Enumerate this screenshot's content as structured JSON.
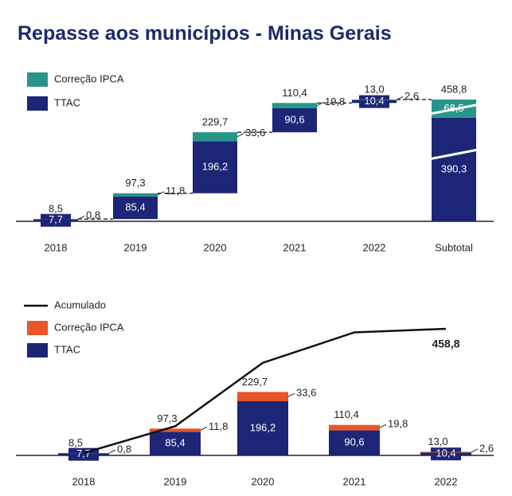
{
  "chart_data": [
    {
      "type": "waterfall",
      "title": "Repasse aos municípios - Minas Gerais",
      "categories": [
        "2018",
        "2019",
        "2020",
        "2021",
        "2022",
        "Subtotal"
      ],
      "measures": [
        "relative",
        "relative",
        "relative",
        "relative",
        "relative",
        "total"
      ],
      "series": [
        {
          "name": "TTAC",
          "color": "#1d2576",
          "values": [
            7.7,
            85.4,
            196.2,
            90.6,
            10.4,
            390.3
          ],
          "value_labels": [
            "7,7",
            "85,4",
            "196,2",
            "90,6",
            "10,4",
            "390,3"
          ]
        },
        {
          "name": "Correção IPCA",
          "color": "#27958a",
          "values": [
            0.8,
            11.8,
            33.6,
            19.8,
            2.6,
            68.5
          ],
          "value_labels": [
            "0,8",
            "11,8",
            "33,6",
            "19,8",
            "2,6",
            "68,5"
          ]
        }
      ],
      "totals": [
        8.5,
        97.3,
        229.7,
        110.4,
        13.0,
        458.8
      ],
      "totals_labels": [
        "8,5",
        "97,3",
        "229,7",
        "110,4",
        "13,0",
        "458,8"
      ]
    },
    {
      "type": "bar",
      "stacked": true,
      "categories": [
        "2018",
        "2019",
        "2020",
        "2021",
        "2022"
      ],
      "series": [
        {
          "name": "TTAC",
          "color": "#1d2576",
          "values": [
            7.7,
            85.4,
            196.2,
            90.6,
            10.4
          ],
          "value_labels": [
            "7,7",
            "85,4",
            "196,2",
            "90,6",
            "10,4"
          ]
        },
        {
          "name": "Correção IPCA",
          "color": "#e8552a",
          "values": [
            0.8,
            11.8,
            33.6,
            19.8,
            2.6
          ],
          "value_labels": [
            "0,8",
            "11,8",
            "33,6",
            "19,8",
            "2,6"
          ]
        },
        {
          "name": "Acumulado",
          "type": "line",
          "color": "#111111",
          "values": [
            8.5,
            105.8,
            335.5,
            445.9,
            458.8
          ],
          "value_labels": [
            null,
            null,
            null,
            null,
            "458,8"
          ]
        }
      ],
      "totals": [
        8.5,
        97.3,
        229.7,
        110.4,
        13.0
      ],
      "totals_labels": [
        "8,5",
        "97,3",
        "229,7",
        "110,4",
        "13,0"
      ]
    }
  ]
}
